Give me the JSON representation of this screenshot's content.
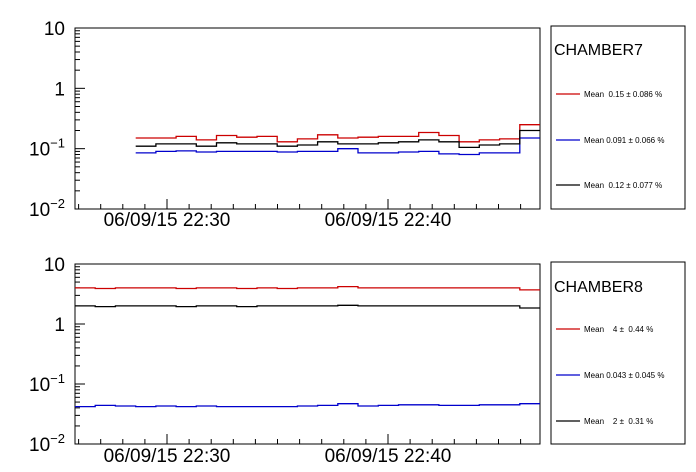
{
  "chart_data": [
    {
      "type": "line",
      "step": true,
      "title": "",
      "xlabel": "",
      "ylabel": "",
      "yscale": "log",
      "ylim": [
        0.01,
        10
      ],
      "y_ticks": [
        {
          "value": 10,
          "base": "10",
          "exp": ""
        },
        {
          "value": 1,
          "base": "1",
          "exp": ""
        },
        {
          "value": 0.1,
          "base": "10",
          "exp": "−1"
        },
        {
          "value": 0.01,
          "base": "10",
          "exp": "−2"
        }
      ],
      "x_tick_labels": [
        "06/09/15 22:30",
        "06/09/15 22:40"
      ],
      "n_bins": 23,
      "legend": {
        "header": "CHAMBER7",
        "placement": "right",
        "entries": [
          {
            "label": "Mean  0.15 ± 0.086 %",
            "color": "#cc0000"
          },
          {
            "label": "Mean 0.091 ± 0.066 %",
            "color": "#0000cc"
          },
          {
            "label": "Mean  0.12 ± 0.077 %",
            "color": "#000000"
          }
        ]
      },
      "series": [
        {
          "color": "#cc0000",
          "values": [
            0.15,
            0.15,
            0.16,
            0.14,
            0.165,
            0.155,
            0.16,
            0.13,
            0.145,
            0.17,
            0.15,
            0.155,
            0.16,
            0.16,
            0.185,
            0.165,
            0.13,
            0.14,
            0.145,
            0.25
          ]
        },
        {
          "color": "#0000cc",
          "values": [
            0.085,
            0.09,
            0.092,
            0.088,
            0.09,
            0.09,
            0.09,
            0.088,
            0.09,
            0.09,
            0.1,
            0.085,
            0.085,
            0.088,
            0.09,
            0.082,
            0.08,
            0.085,
            0.085,
            0.15
          ]
        },
        {
          "color": "#000000",
          "values": [
            0.11,
            0.12,
            0.12,
            0.11,
            0.125,
            0.12,
            0.12,
            0.11,
            0.115,
            0.13,
            0.12,
            0.12,
            0.125,
            0.13,
            0.14,
            0.13,
            0.105,
            0.115,
            0.12,
            0.2
          ]
        }
      ]
    },
    {
      "type": "line",
      "step": true,
      "title": "",
      "xlabel": "",
      "ylabel": "",
      "yscale": "log",
      "ylim": [
        0.01,
        10
      ],
      "y_ticks": [
        {
          "value": 10,
          "base": "10",
          "exp": ""
        },
        {
          "value": 1,
          "base": "1",
          "exp": ""
        },
        {
          "value": 0.1,
          "base": "10",
          "exp": "−1"
        },
        {
          "value": 0.01,
          "base": "10",
          "exp": "−2"
        }
      ],
      "x_tick_labels": [
        "06/09/15 22:30",
        "06/09/15 22:40"
      ],
      "n_bins": 23,
      "legend": {
        "header": "CHAMBER8",
        "placement": "right",
        "entries": [
          {
            "label": "Mean    4 ±  0.44 %",
            "color": "#cc0000"
          },
          {
            "label": "Mean 0.043 ± 0.045 %",
            "color": "#0000cc"
          },
          {
            "label": "Mean    2 ±  0.31 %",
            "color": "#000000"
          }
        ]
      },
      "series": [
        {
          "color": "#cc0000",
          "values": [
            4.0,
            3.9,
            4.0,
            4.0,
            4.0,
            3.9,
            4.0,
            4.0,
            3.9,
            4.0,
            3.9,
            4.0,
            4.0,
            4.2,
            4.0,
            4.0,
            4.0,
            4.0,
            4.0,
            4.0,
            4.0,
            4.0,
            3.7
          ]
        },
        {
          "color": "#0000cc",
          "values": [
            0.042,
            0.044,
            0.043,
            0.042,
            0.043,
            0.042,
            0.043,
            0.042,
            0.042,
            0.042,
            0.042,
            0.043,
            0.044,
            0.047,
            0.043,
            0.044,
            0.045,
            0.045,
            0.044,
            0.044,
            0.045,
            0.045,
            0.047
          ]
        },
        {
          "color": "#000000",
          "values": [
            2.0,
            1.95,
            2.0,
            2.0,
            2.0,
            1.95,
            2.0,
            2.0,
            1.95,
            2.0,
            2.0,
            2.0,
            2.0,
            2.05,
            2.0,
            2.0,
            2.0,
            2.0,
            2.0,
            2.0,
            2.0,
            2.0,
            1.85
          ]
        }
      ]
    }
  ]
}
